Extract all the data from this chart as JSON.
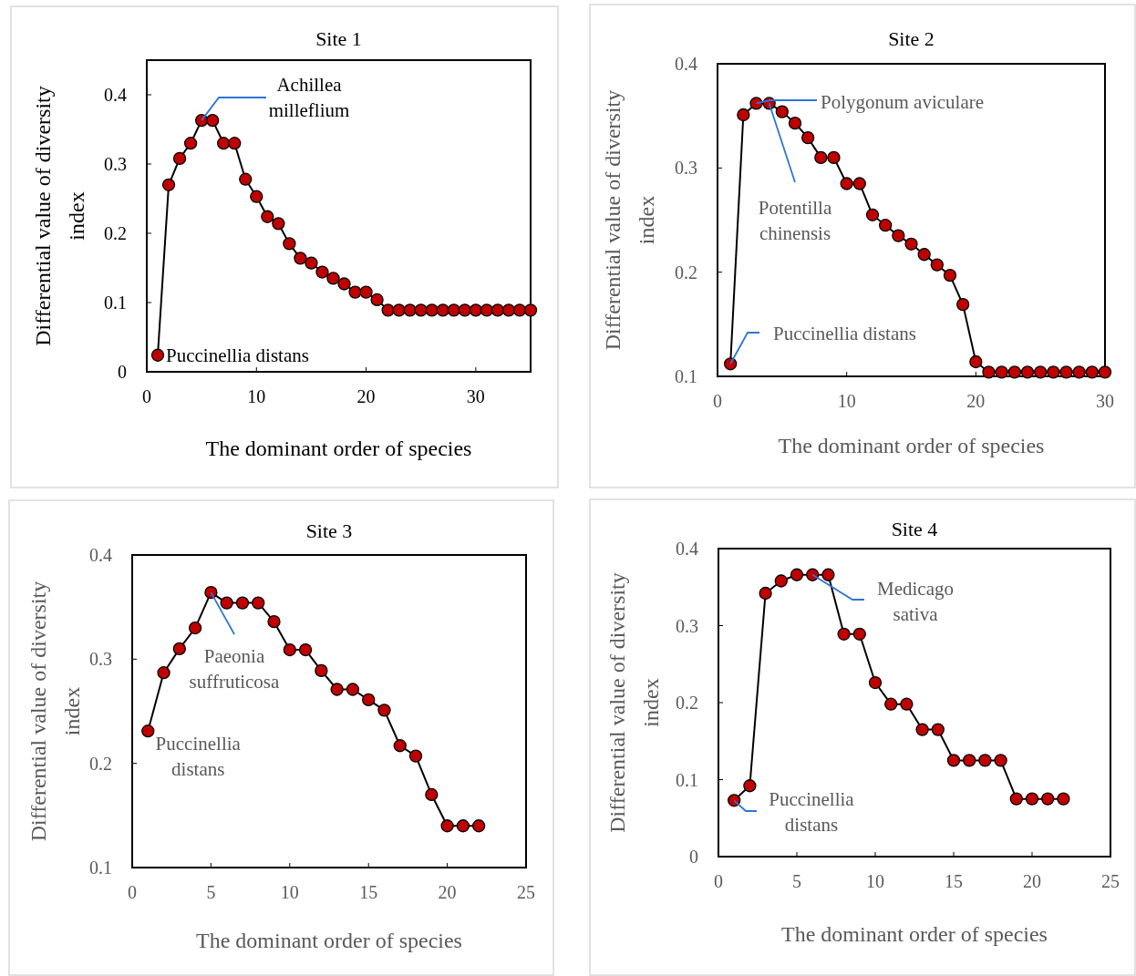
{
  "chart_data": [
    {
      "type": "line",
      "title": "Site 1",
      "xlabel": "The dominant order of species",
      "ylabel": "Differential value of diversity index",
      "xlim": [
        0,
        35
      ],
      "xticks": [
        0,
        10,
        20,
        30
      ],
      "ylim": [
        0,
        0.45
      ],
      "yticks": [
        0,
        0.1,
        0.2,
        0.3,
        0.4
      ],
      "grid": false,
      "marker": "circle",
      "line_style": "solid",
      "series": [
        {
          "color": "#c00000",
          "x": [
            1,
            2,
            3,
            4,
            5,
            6,
            7,
            8,
            9,
            10,
            11,
            12,
            13,
            14,
            15,
            16,
            17,
            18,
            19,
            20,
            21,
            22,
            23,
            24,
            25,
            26,
            27,
            28,
            29,
            30,
            31,
            32,
            33,
            34,
            35
          ],
          "values": [
            0.024,
            0.27,
            0.308,
            0.33,
            0.363,
            0.363,
            0.33,
            0.33,
            0.278,
            0.253,
            0.224,
            0.214,
            0.185,
            0.164,
            0.157,
            0.144,
            0.135,
            0.127,
            0.115,
            0.115,
            0.104,
            0.089,
            0.089,
            0.089,
            0.089,
            0.089,
            0.089,
            0.089,
            0.089,
            0.089,
            0.089,
            0.089,
            0.089,
            0.089,
            0.089
          ]
        }
      ],
      "annotations": [
        {
          "text": "Achillea milleflium",
          "x": 5,
          "y": 0.363
        },
        {
          "text": "Puccinellia distans",
          "x": 1,
          "y": 0.024
        }
      ]
    },
    {
      "type": "line",
      "title": "Site 2",
      "xlabel": "The dominant order of species",
      "ylabel": "Differential value of diversity index",
      "xlim": [
        0,
        30
      ],
      "xticks": [
        0,
        10,
        20,
        30
      ],
      "ylim": [
        0.1,
        0.4
      ],
      "yticks": [
        0.1,
        0.2,
        0.3,
        0.4
      ],
      "grid": false,
      "marker": "circle",
      "line_style": "solid",
      "series": [
        {
          "color": "#c00000",
          "x": [
            1,
            2,
            3,
            4,
            5,
            6,
            7,
            8,
            9,
            10,
            11,
            12,
            13,
            14,
            15,
            16,
            17,
            18,
            19,
            20,
            21,
            22,
            23,
            24,
            25,
            26,
            27,
            28,
            29,
            30
          ],
          "values": [
            0.112,
            0.351,
            0.362,
            0.362,
            0.354,
            0.343,
            0.329,
            0.31,
            0.31,
            0.285,
            0.285,
            0.255,
            0.245,
            0.235,
            0.227,
            0.217,
            0.207,
            0.197,
            0.169,
            0.114,
            0.104,
            0.104,
            0.104,
            0.104,
            0.104,
            0.104,
            0.104,
            0.104,
            0.104,
            0.104
          ]
        }
      ],
      "annotations": [
        {
          "text": "Polygonum aviculare",
          "x": 3,
          "y": 0.362
        },
        {
          "text": "Potentilla chinensis",
          "x": 4,
          "y": 0.362
        },
        {
          "text": "Puccinellia distans",
          "x": 1,
          "y": 0.112
        }
      ]
    },
    {
      "type": "line",
      "title": "Site 3",
      "xlabel": "The dominant order of species",
      "ylabel": "Differential value of diversity index",
      "xlim": [
        0,
        25
      ],
      "xticks": [
        0,
        5,
        10,
        15,
        20,
        25
      ],
      "ylim": [
        0.1,
        0.4
      ],
      "yticks": [
        0.1,
        0.2,
        0.3,
        0.4
      ],
      "grid": false,
      "marker": "circle",
      "line_style": "solid",
      "series": [
        {
          "color": "#c00000",
          "x": [
            1,
            2,
            3,
            4,
            5,
            6,
            7,
            8,
            9,
            10,
            11,
            12,
            13,
            14,
            15,
            16,
            17,
            18,
            19,
            20,
            21,
            22
          ],
          "values": [
            0.231,
            0.287,
            0.31,
            0.33,
            0.364,
            0.354,
            0.354,
            0.354,
            0.336,
            0.309,
            0.309,
            0.289,
            0.271,
            0.271,
            0.261,
            0.251,
            0.217,
            0.207,
            0.17,
            0.14,
            0.14,
            0.14
          ]
        }
      ],
      "annotations": [
        {
          "text": "Paeonia suffruticosa",
          "x": 5,
          "y": 0.364
        },
        {
          "text": "Puccinellia distans",
          "x": 1,
          "y": 0.231
        }
      ]
    },
    {
      "type": "line",
      "title": "Site 4",
      "xlabel": "The dominant order of species",
      "ylabel": "Differential value of diversity index",
      "xlim": [
        0,
        25
      ],
      "xticks": [
        0,
        5,
        10,
        15,
        20,
        25
      ],
      "ylim": [
        0,
        0.4
      ],
      "yticks": [
        0,
        0.1,
        0.2,
        0.3,
        0.4
      ],
      "grid": false,
      "marker": "circle",
      "line_style": "solid",
      "series": [
        {
          "color": "#c00000",
          "x": [
            1,
            2,
            3,
            4,
            5,
            6,
            7,
            8,
            9,
            10,
            11,
            12,
            13,
            14,
            15,
            16,
            17,
            18,
            19,
            20,
            21,
            22
          ],
          "values": [
            0.073,
            0.092,
            0.342,
            0.358,
            0.366,
            0.366,
            0.366,
            0.289,
            0.289,
            0.226,
            0.198,
            0.198,
            0.165,
            0.165,
            0.125,
            0.125,
            0.125,
            0.125,
            0.075,
            0.075,
            0.075,
            0.075
          ]
        }
      ],
      "annotations": [
        {
          "text": "Medicago sativa",
          "x": 6,
          "y": 0.366
        },
        {
          "text": "Puccinellia distans",
          "x": 1,
          "y": 0.073
        }
      ]
    }
  ]
}
